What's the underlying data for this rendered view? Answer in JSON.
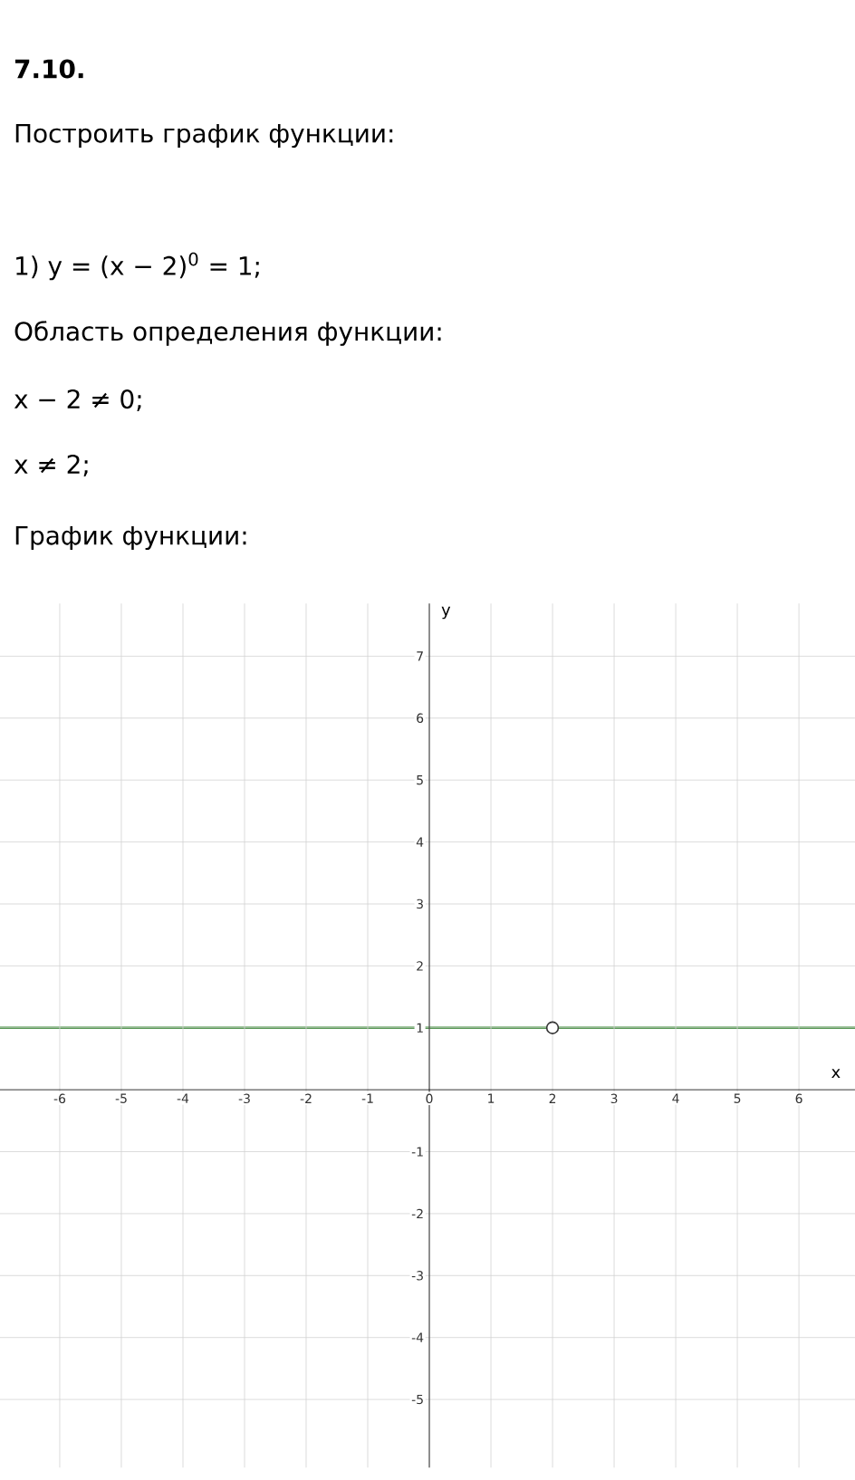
{
  "chart_data": {
    "type": "line",
    "title": "7.10.",
    "annotations": [
      "Построить график функции:",
      "1) y = (x − 2)$^{0}$ = 1;",
      "Область определения функции:",
      "x − 2 ≠ 0;",
      "x ≠ 2;",
      "График функции:"
    ],
    "xlabel": "x",
    "ylabel": "y",
    "xlim": [
      -6.97,
      6.91
    ],
    "ylim": [
      -6.1,
      7.85
    ],
    "xticks": [
      -6,
      -5,
      -4,
      -3,
      -2,
      -1,
      0,
      1,
      2,
      3,
      4,
      5,
      6
    ],
    "yticks": [
      -5,
      -4,
      -3,
      -2,
      -1,
      1,
      2,
      3,
      4,
      5,
      6,
      7
    ],
    "grid": true,
    "series": [
      {
        "type": "line",
        "color": "#3d8b37",
        "x": [
          -6.97,
          6.91
        ],
        "values": [
          1,
          1
        ]
      },
      {
        "type": "scatter",
        "marker": "circle",
        "color": "#333333",
        "x": [
          2
        ],
        "values": [
          1
        ]
      }
    ]
  }
}
